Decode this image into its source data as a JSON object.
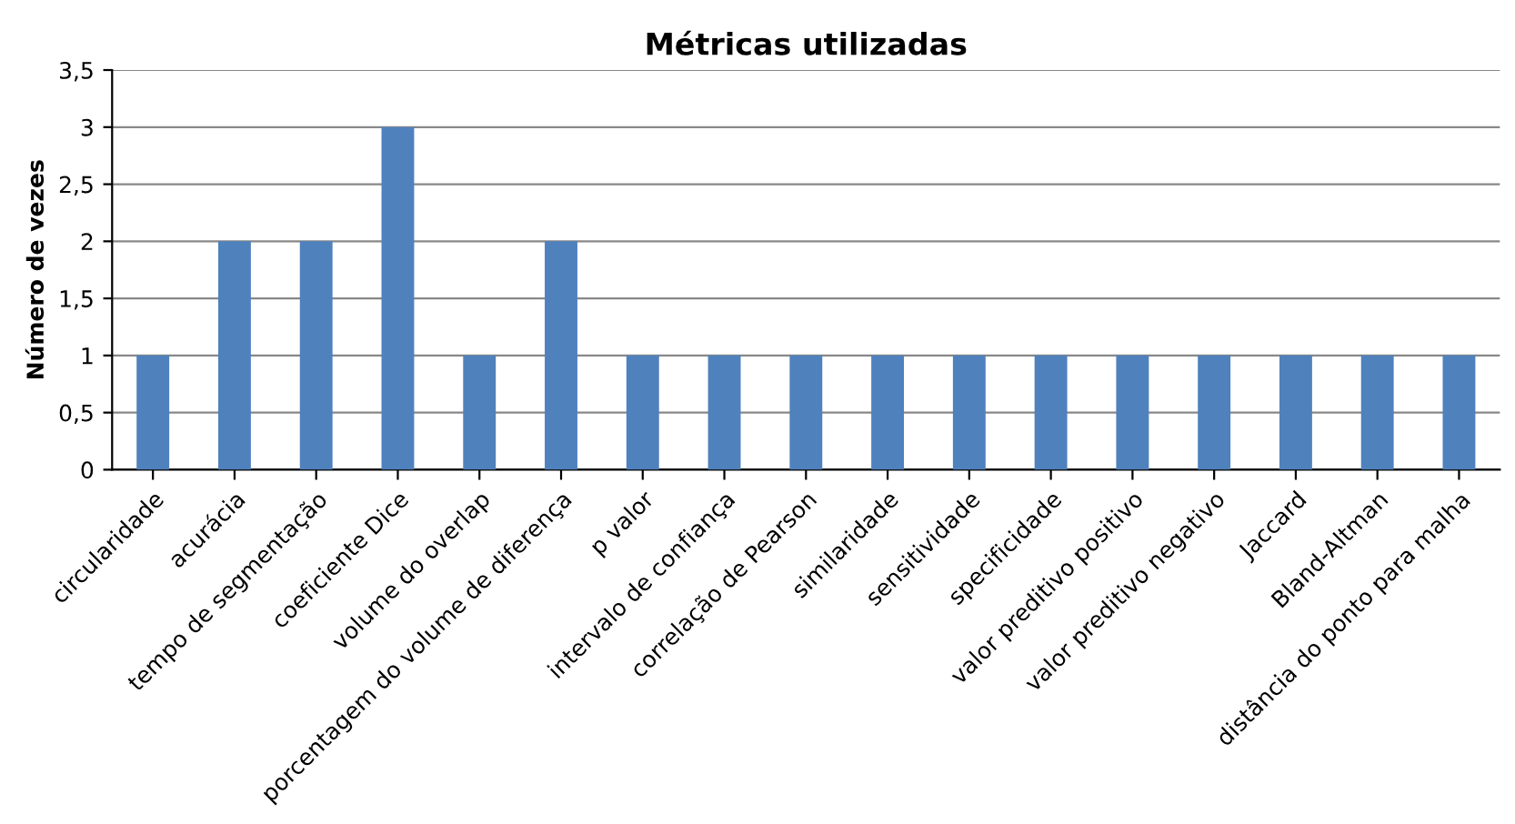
{
  "chart_data": {
    "type": "bar",
    "title": "Métricas utilizadas",
    "ylabel": "Número de vezes",
    "categories": [
      "circularidade",
      "acurácia",
      "tempo de segmentação",
      "coeficiente Dice",
      "volume do overlap",
      "porcentagem do volume de diferença",
      "p valor",
      "intervalo de confiança",
      "correlação de Pearson",
      "similaridade",
      "sensitividade",
      "specificidade",
      "valor preditivo positivo",
      "valor preditivo negativo",
      "Jaccard",
      "Bland-Altman",
      "distância do ponto para malha"
    ],
    "values": [
      1,
      2,
      2,
      3,
      1,
      2,
      1,
      1,
      1,
      1,
      1,
      1,
      1,
      1,
      1,
      1,
      1
    ],
    "color": "#4f81bd",
    "ylim": [
      0,
      3.5
    ],
    "yticks": [
      {
        "value": 0,
        "label": "0"
      },
      {
        "value": 0.5,
        "label": "0,5"
      },
      {
        "value": 1,
        "label": "1"
      },
      {
        "value": 1.5,
        "label": "1,5"
      },
      {
        "value": 2,
        "label": "2"
      },
      {
        "value": 2.5,
        "label": "2,5"
      },
      {
        "value": 3,
        "label": "3"
      },
      {
        "value": 3.5,
        "label": "3,5"
      }
    ],
    "grid": "y"
  }
}
